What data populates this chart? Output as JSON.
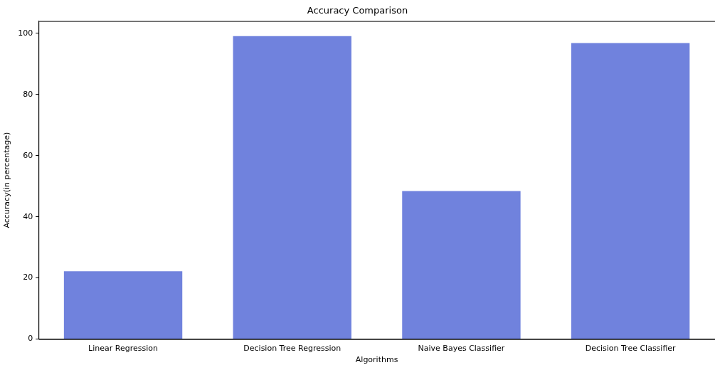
{
  "chart_data": {
    "type": "bar",
    "title": "Accuracy Comparison",
    "xlabel": "Algorithms",
    "ylabel": "Accuracy(in percentage)",
    "categories": [
      "Linear Regression",
      "Decision Tree Regression",
      "Naive Bayes Classifier",
      "Decision Tree Classifier"
    ],
    "values": [
      22.2,
      99.1,
      48.4,
      96.8
    ],
    "color": "#7082dd",
    "ylim": [
      0,
      104
    ],
    "yticks": [
      0,
      20,
      40,
      60,
      80,
      100
    ],
    "grid": false
  }
}
